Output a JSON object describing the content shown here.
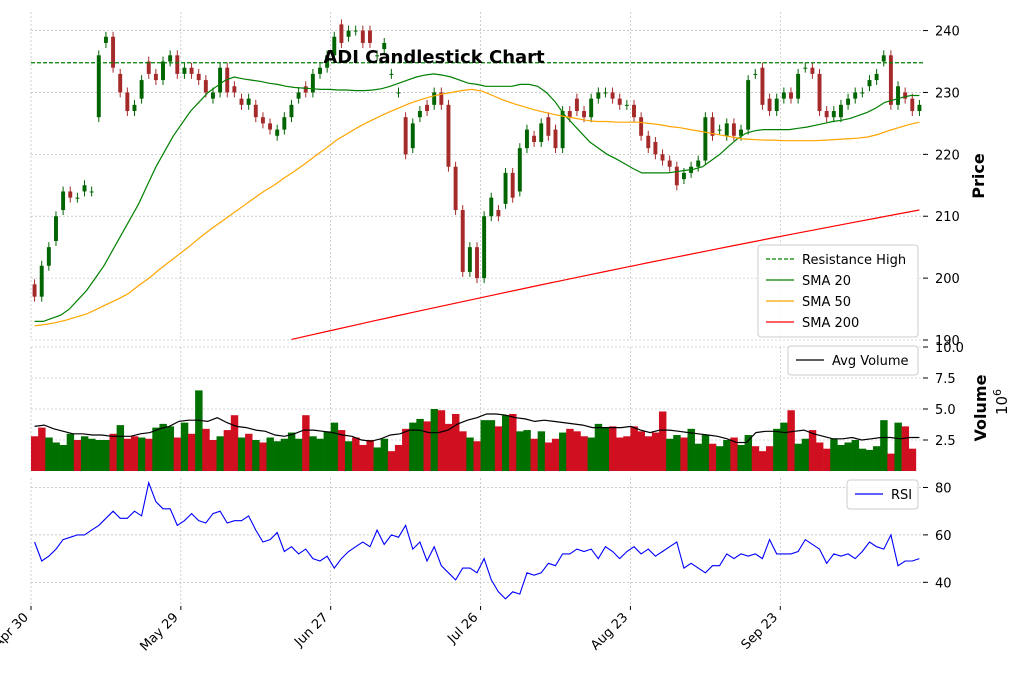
{
  "chart_data": {
    "type": "candlestick",
    "title": "ADI Candlestick Chart",
    "x_tick_labels": [
      "Apr 30",
      "May 29",
      "Jun 27",
      "Jul 26",
      "Aug 23",
      "Sep 23"
    ],
    "x_tick_indices": [
      0,
      21,
      42,
      63,
      84,
      105
    ],
    "n_bars": 125,
    "colors": {
      "up": "#006400",
      "down": "#a52a2a",
      "vol_up": "#007000",
      "vol_down": "#d01020",
      "sma20": "#008000",
      "sma50": "#ffa500",
      "sma200": "#ff0000",
      "resistance": "#008000",
      "avg_volume": "#000000",
      "rsi": "#0000ff"
    },
    "price_panel": {
      "ylabel": "Price",
      "ylim": [
        190,
        243
      ],
      "yticks": [
        190,
        200,
        210,
        220,
        230,
        240
      ],
      "resistance_high": 234.8,
      "legend": [
        "Resistance High",
        "SMA 20",
        "SMA 50",
        "SMA 200"
      ],
      "closes": [
        197,
        202,
        205,
        210,
        214,
        213,
        213,
        215,
        214,
        236,
        239,
        234,
        230,
        227,
        228,
        232,
        233,
        232,
        235,
        236,
        233,
        234,
        233,
        232,
        230,
        230,
        234,
        230,
        230,
        228,
        229,
        226,
        225,
        224,
        224,
        226,
        228,
        230,
        230,
        233,
        234,
        236,
        239,
        238,
        240,
        240,
        238,
        238,
        236,
        238,
        233,
        230,
        220,
        225,
        227,
        227,
        230,
        228,
        218,
        211,
        201,
        205,
        200,
        210,
        213,
        210,
        217,
        213,
        221,
        224,
        222,
        225,
        223,
        221,
        227,
        226,
        227,
        226,
        229,
        230,
        230,
        229,
        228,
        228,
        226,
        223,
        221,
        220,
        219,
        218,
        215,
        217,
        218,
        219,
        226,
        223,
        224,
        225,
        223,
        224,
        232,
        233,
        228,
        227,
        229,
        230,
        229,
        233,
        234,
        233,
        227,
        226,
        227,
        228,
        229,
        230,
        230,
        232,
        233,
        236,
        228,
        231,
        229,
        227,
        228
      ],
      "opens": [
        199,
        197,
        202,
        206,
        211,
        214,
        213,
        214,
        214,
        226,
        238,
        239,
        233,
        230,
        227,
        229,
        235,
        233,
        232,
        235,
        236,
        233,
        234,
        233,
        232,
        229,
        230,
        234,
        231,
        229,
        228,
        228,
        226,
        225,
        223,
        224,
        226,
        229,
        231,
        230,
        233,
        234,
        236,
        241,
        239,
        240,
        240,
        240,
        236,
        237,
        233,
        230,
        226,
        221,
        226,
        228,
        228,
        230,
        228,
        218,
        211,
        201,
        205,
        200,
        210,
        211,
        212,
        217,
        214,
        221,
        223,
        222,
        226,
        224,
        221,
        227,
        229,
        227,
        226,
        229,
        230,
        230,
        229,
        228,
        228,
        226,
        223,
        222,
        220,
        219,
        218,
        216,
        217,
        218,
        219,
        226,
        224,
        223,
        225,
        223,
        224,
        233,
        234,
        229,
        227,
        229,
        230,
        229,
        234,
        234,
        233,
        227,
        226,
        226,
        228,
        229,
        230,
        231,
        232,
        235,
        236,
        228,
        230,
        229,
        227
      ],
      "sma20": [
        193,
        193,
        193.5,
        194,
        195,
        196.5,
        198,
        200,
        202,
        204.5,
        207,
        209.5,
        212,
        215,
        218,
        220.5,
        223,
        225,
        227,
        228.5,
        230,
        231,
        232,
        232.5,
        232.2,
        232,
        231.8,
        231.5,
        231.3,
        231,
        230.8,
        230.7,
        230.6,
        230.5,
        230.5,
        230.4,
        230.4,
        230.3,
        230.3,
        230.4,
        230.6,
        231,
        231.5,
        232,
        232.5,
        232.8,
        233,
        232.8,
        232.5,
        232,
        231.5,
        231.3,
        231,
        231,
        231,
        231,
        231.3,
        231.3,
        231,
        230,
        228.5,
        226.5,
        225,
        223.5,
        222,
        221,
        220,
        219.3,
        218.5,
        217.7,
        217,
        217,
        217,
        217,
        217.2,
        217.4,
        217.6,
        218,
        219,
        220,
        221.3,
        222.5,
        223.4,
        223.8,
        224,
        224,
        224,
        224,
        224.2,
        224.4,
        224.7,
        225,
        225.3,
        225.5,
        225.8,
        226.3,
        226.8,
        227.5,
        228.4,
        228.8,
        229.2,
        229.5,
        229.5
      ],
      "sma50": [
        192.3,
        192.5,
        192.8,
        193.2,
        193.7,
        194.2,
        195,
        195.8,
        196.6,
        197.5,
        198.8,
        200,
        201.4,
        202.7,
        204,
        205.3,
        206.7,
        208,
        209.2,
        210.4,
        211.6,
        212.8,
        214,
        215,
        216.2,
        217.3,
        218.5,
        219.8,
        221,
        222.3,
        223.3,
        224.3,
        225.2,
        226,
        226.8,
        227.5,
        228.2,
        228.8,
        229.3,
        229.7,
        230,
        230.3,
        230.5,
        230.2,
        229.5,
        228.8,
        228.2,
        227.7,
        227.2,
        226.8,
        226.4,
        226.1,
        225.8,
        225.5,
        225.3,
        225.3,
        225.2,
        225.2,
        225.2,
        225,
        224.8,
        224.5,
        224.3,
        224,
        223.7,
        223.4,
        223.1,
        222.8,
        222.5,
        222.4,
        222.3,
        222.3,
        222.2,
        222.2,
        222.2,
        222.2,
        222.3,
        222.4,
        222.5,
        222.6,
        222.8,
        223.2,
        223.8,
        224.3,
        224.8,
        225.2
      ],
      "sma200_start_index": 36,
      "sma200_start": 190.1,
      "sma200_end": 211
    },
    "volume_panel": {
      "ylabel": "Volume",
      "multiplier_label": "10",
      "multiplier_exp": "6",
      "ylim": [
        0,
        10
      ],
      "yticks": [
        2.5,
        5.0,
        7.5,
        10.0
      ],
      "ytick_labels": [
        "2.5",
        "5.0",
        "7.5",
        "10.0"
      ],
      "legend": [
        "Avg Volume"
      ],
      "values": [
        2.8,
        3.5,
        2.7,
        2.3,
        2.1,
        3.0,
        2.5,
        2.8,
        2.6,
        2.5,
        2.5,
        3.0,
        3.7,
        2.6,
        2.8,
        2.7,
        2.6,
        3.5,
        3.8,
        3.6,
        2.7,
        3.9,
        3.0,
        6.5,
        3.4,
        2.5,
        2.8,
        3.3,
        4.5,
        2.7,
        3.0,
        2.5,
        2.3,
        2.7,
        2.4,
        2.6,
        3.1,
        2.6,
        4.5,
        2.8,
        2.6,
        3.2,
        3.9,
        3.3,
        2.4,
        2.7,
        2.1,
        2.5,
        1.9,
        2.6,
        1.6,
        2.1,
        3.4,
        3.9,
        4.2,
        4.0,
        5.0,
        4.9,
        3.8,
        4.6,
        3.2,
        2.7,
        2.4,
        4.1,
        4.1,
        3.6,
        4.5,
        4.6,
        3.2,
        3.3,
        2.6,
        3.2,
        2.3,
        2.6,
        3.1,
        3.4,
        3.2,
        2.8,
        2.7,
        3.8,
        3.5,
        3.6,
        2.7,
        2.8,
        3.6,
        3.2,
        2.8,
        3.1,
        4.8,
        2.6,
        2.9,
        2.7,
        3.4,
        2.2,
        2.9,
        2.2,
        2.0,
        2.5,
        2.7,
        2.1,
        2.9,
        2.0,
        1.6,
        2.0,
        3.4,
        3.9,
        4.9,
        2.2,
        2.6,
        3.3,
        2.3,
        1.8,
        2.6,
        2.1,
        2.3,
        2.5,
        1.8,
        1.7,
        2.0,
        4.1,
        1.4,
        3.9,
        3.6,
        1.8
      ],
      "avg": [
        3.6,
        3.7,
        3.4,
        3.2,
        3.0,
        3.0,
        2.9,
        2.9,
        2.8,
        2.8,
        2.8,
        3.0,
        3.1,
        3.4,
        3.6,
        4.0,
        4.1,
        4.1,
        4.0,
        4.3,
        3.9,
        3.6,
        3.5,
        3.3,
        3.2,
        2.9,
        2.8,
        3.0,
        3.3,
        3.3,
        3.2,
        3.1,
        2.9,
        2.8,
        2.5,
        2.4,
        2.6,
        2.9,
        3.0,
        3.3,
        3.3,
        3.1,
        3.1,
        3.3,
        3.8,
        4.1,
        4.3,
        4.6,
        4.6,
        4.5,
        4.3,
        4.2,
        4.0,
        4.1,
        4.0,
        3.9,
        3.8,
        3.7,
        3.5,
        3.5,
        3.5,
        3.5,
        3.6,
        3.3,
        3.1,
        3.3,
        3.3,
        3.2,
        3.1,
        3.0,
        2.9,
        2.8,
        2.6,
        2.3,
        2.3,
        3.1,
        3.2,
        3.2,
        3.1,
        3.2,
        3.3,
        3.0,
        2.8,
        2.6,
        2.6,
        2.7,
        2.5,
        2.6,
        2.7,
        2.7,
        2.6,
        2.7,
        2.7
      ],
      "up_flags": [
        0,
        0,
        1,
        1,
        1,
        1,
        0,
        1,
        1,
        1,
        1,
        0,
        1,
        0,
        0,
        1,
        0,
        1,
        1,
        1,
        0,
        1,
        0,
        1,
        0,
        0,
        1,
        0,
        0,
        1,
        0,
        1,
        0,
        1,
        1,
        1,
        1,
        1,
        0,
        1,
        1,
        1,
        1,
        0,
        1,
        0,
        0,
        0,
        1,
        1,
        0,
        0,
        0,
        1,
        1,
        0,
        1,
        0,
        0,
        0,
        0,
        1,
        0,
        1,
        1,
        0,
        1,
        0,
        1,
        1,
        0,
        1,
        0,
        0,
        1,
        0,
        0,
        0,
        1,
        1,
        1,
        0,
        0,
        0,
        0,
        0,
        0,
        0,
        0,
        1,
        1,
        0,
        1,
        1,
        1,
        0,
        1,
        1,
        0,
        1,
        1,
        0,
        0,
        0,
        1,
        1,
        0,
        1,
        1,
        0,
        0,
        0,
        1,
        1,
        1,
        1,
        1,
        1,
        1,
        1,
        0,
        1,
        0,
        0,
        1
      ]
    },
    "rsi_panel": {
      "ylabel": "",
      "ylim": [
        30,
        84
      ],
      "yticks": [
        40,
        60,
        80
      ],
      "legend": [
        "RSI"
      ],
      "values": [
        57,
        49,
        51,
        54,
        58,
        59,
        60,
        60,
        62,
        64,
        67,
        70,
        67,
        67,
        70,
        68,
        82,
        74,
        71,
        71,
        64,
        66,
        69,
        66,
        65,
        69,
        70,
        65,
        66,
        66,
        68,
        62,
        57,
        58,
        61,
        53,
        55,
        52,
        54,
        50,
        49,
        51,
        46,
        50,
        53,
        55,
        57,
        55,
        62,
        56,
        60,
        59,
        64,
        54,
        57,
        49,
        55,
        47,
        44,
        41,
        46,
        46,
        44,
        50,
        41,
        36,
        33,
        36,
        35,
        44,
        43,
        44,
        48,
        47,
        52,
        52,
        54,
        53,
        54,
        50,
        55,
        53,
        50,
        53,
        55,
        52,
        54,
        51,
        53,
        55,
        57,
        46,
        48,
        46,
        44,
        47,
        47,
        52,
        50,
        52,
        51,
        52,
        50,
        58,
        52,
        52,
        52,
        53,
        58,
        56,
        54,
        48,
        52,
        51,
        52,
        50,
        53,
        57,
        55,
        54,
        60,
        47,
        49,
        49,
        50
      ]
    }
  }
}
